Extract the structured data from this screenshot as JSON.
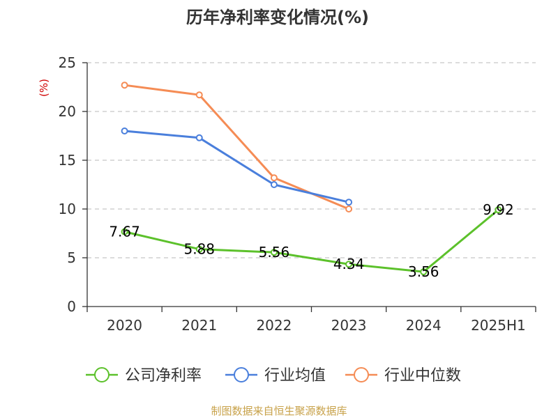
{
  "chart_data": {
    "type": "line",
    "title": "历年净利率变化情况(%)",
    "ylabel": "(%)",
    "xlabel": "",
    "categories": [
      "2020",
      "2021",
      "2022",
      "2023",
      "2024",
      "2025H1"
    ],
    "ylim": [
      0,
      25
    ],
    "yticks": [
      "0",
      "5",
      "10",
      "15",
      "20",
      "25"
    ],
    "grid": true,
    "legend_position": "bottom",
    "series": [
      {
        "name": "公司净利率",
        "color": "#5cc12b",
        "values": [
          7.67,
          5.88,
          5.56,
          4.34,
          3.56,
          9.92
        ],
        "labels": [
          "7.67",
          "5.88",
          "5.56",
          "4.34",
          "3.56",
          "9.92"
        ],
        "show_labels": true
      },
      {
        "name": "行业均值",
        "color": "#4a7fdc",
        "values": [
          18.0,
          17.3,
          12.5,
          10.7,
          null,
          null
        ],
        "show_labels": false
      },
      {
        "name": "行业中位数",
        "color": "#f58c55",
        "values": [
          22.7,
          21.7,
          13.2,
          10.0,
          null,
          null
        ],
        "show_labels": false
      }
    ]
  },
  "footer": {
    "source": "制图数据来自恒生聚源数据库"
  }
}
